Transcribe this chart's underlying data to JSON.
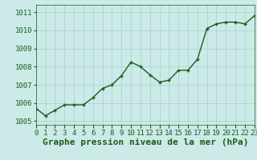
{
  "x": [
    0,
    1,
    2,
    3,
    4,
    5,
    6,
    7,
    8,
    9,
    10,
    11,
    12,
    13,
    14,
    15,
    16,
    17,
    18,
    19,
    20,
    21,
    22,
    23
  ],
  "y": [
    1005.7,
    1005.3,
    1005.6,
    1005.9,
    1005.9,
    1005.9,
    1006.3,
    1006.8,
    1007.0,
    1007.5,
    1008.25,
    1008.0,
    1007.55,
    1007.15,
    1007.25,
    1007.8,
    1007.8,
    1008.4,
    1010.1,
    1010.35,
    1010.45,
    1010.45,
    1010.35,
    1010.8
  ],
  "line_color": "#1a5c1a",
  "marker": "+",
  "marker_size": 3.5,
  "marker_linewidth": 1.0,
  "background_color": "#cceae8",
  "grid_color": "#aacfcc",
  "xlabel": "Graphe pression niveau de la mer (hPa)",
  "xlabel_fontsize": 8,
  "xlabel_color": "#1a5c1a",
  "xlabel_bold": true,
  "yticks": [
    1005,
    1006,
    1007,
    1008,
    1009,
    1010,
    1011
  ],
  "xticks": [
    0,
    1,
    2,
    3,
    4,
    5,
    6,
    7,
    8,
    9,
    10,
    11,
    12,
    13,
    14,
    15,
    16,
    17,
    18,
    19,
    20,
    21,
    22,
    23
  ],
  "xlim": [
    0,
    23
  ],
  "ylim": [
    1004.8,
    1011.4
  ],
  "tick_fontsize": 6.5,
  "tick_color": "#1a5c1a",
  "linewidth": 1.0
}
